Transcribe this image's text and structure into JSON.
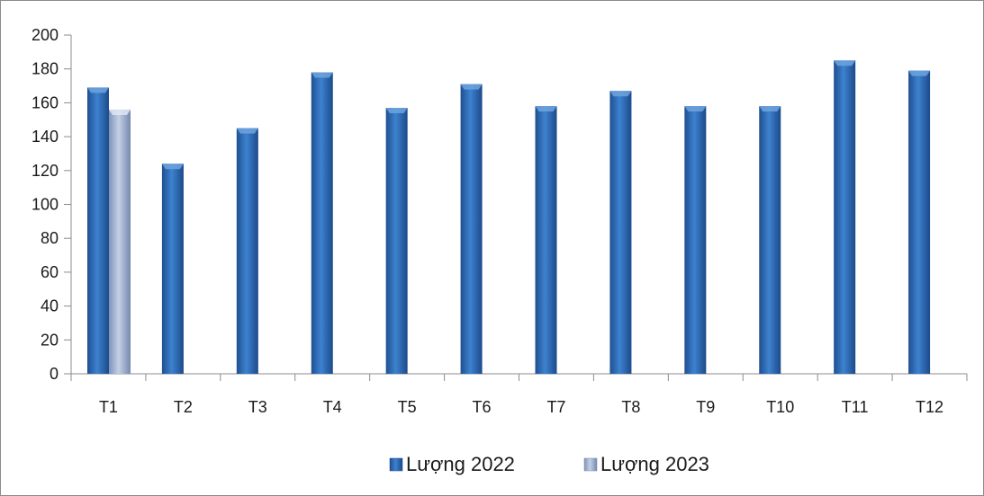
{
  "chart_data": {
    "type": "bar",
    "categories": [
      "T1",
      "T2",
      "T3",
      "T4",
      "T5",
      "T6",
      "T7",
      "T8",
      "T9",
      "T10",
      "T11",
      "T12"
    ],
    "series": [
      {
        "name": "Lượng 2022",
        "values": [
          169,
          124,
          145,
          178,
          157,
          171,
          158,
          167,
          158,
          158,
          185,
          179
        ],
        "color": "#2e6bb8"
      },
      {
        "name": "Lượng 2023",
        "values": [
          156,
          null,
          null,
          null,
          null,
          null,
          null,
          null,
          null,
          null,
          null,
          null
        ],
        "color": "#9aaed0"
      }
    ],
    "y_ticks": [
      0,
      20,
      40,
      60,
      80,
      100,
      120,
      140,
      160,
      180,
      200
    ],
    "ylim": [
      0,
      200
    ],
    "grid": false,
    "legend_position": "bottom"
  }
}
